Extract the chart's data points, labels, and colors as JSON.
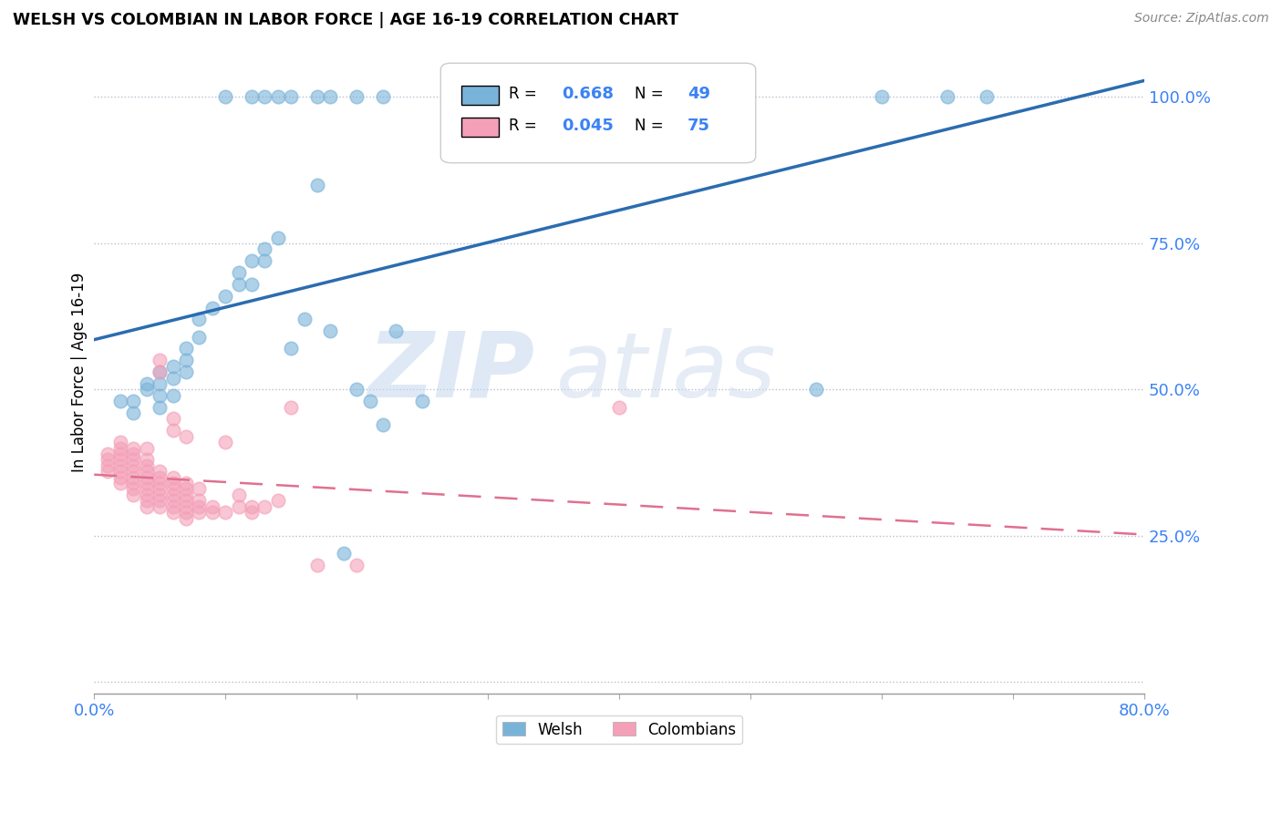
{
  "title": "WELSH VS COLOMBIAN IN LABOR FORCE | AGE 16-19 CORRELATION CHART",
  "source": "Source: ZipAtlas.com",
  "ylabel": "In Labor Force | Age 16-19",
  "xlim": [
    0.0,
    0.8
  ],
  "ylim": [
    -0.02,
    1.08
  ],
  "welsh_color": "#7ab3d9",
  "colombian_color": "#f4a0b8",
  "welsh_line_color": "#2b6cb0",
  "colombian_line_color": "#e07090",
  "tick_color": "#3b82f6",
  "welsh_R": 0.668,
  "welsh_N": 49,
  "colombian_R": 0.045,
  "colombian_N": 75,
  "watermark_zip": "ZIP",
  "watermark_atlas": "atlas",
  "legend_welsh": "Welsh",
  "legend_colombian": "Colombians",
  "welsh_x": [
    0.02,
    0.03,
    0.03,
    0.04,
    0.04,
    0.05,
    0.05,
    0.05,
    0.05,
    0.06,
    0.06,
    0.06,
    0.07,
    0.07,
    0.07,
    0.08,
    0.08,
    0.09,
    0.1,
    0.11,
    0.11,
    0.12,
    0.12,
    0.13,
    0.13,
    0.14,
    0.15,
    0.16,
    0.17,
    0.18,
    0.19,
    0.2,
    0.21,
    0.22,
    0.23,
    0.25,
    0.1,
    0.12,
    0.13,
    0.14,
    0.15,
    0.17,
    0.18,
    0.2,
    0.22,
    0.55,
    0.6,
    0.65,
    0.68
  ],
  "welsh_y": [
    0.48,
    0.46,
    0.48,
    0.5,
    0.51,
    0.47,
    0.49,
    0.51,
    0.53,
    0.49,
    0.52,
    0.54,
    0.53,
    0.55,
    0.57,
    0.59,
    0.62,
    0.64,
    0.66,
    0.68,
    0.7,
    0.72,
    0.68,
    0.72,
    0.74,
    0.76,
    0.57,
    0.62,
    0.85,
    0.6,
    0.22,
    0.5,
    0.48,
    0.44,
    0.6,
    0.48,
    1.0,
    1.0,
    1.0,
    1.0,
    1.0,
    1.0,
    1.0,
    1.0,
    1.0,
    0.5,
    1.0,
    1.0,
    1.0
  ],
  "colombian_x": [
    0.01,
    0.01,
    0.01,
    0.01,
    0.02,
    0.02,
    0.02,
    0.02,
    0.02,
    0.02,
    0.02,
    0.02,
    0.03,
    0.03,
    0.03,
    0.03,
    0.03,
    0.03,
    0.03,
    0.03,
    0.03,
    0.04,
    0.04,
    0.04,
    0.04,
    0.04,
    0.04,
    0.04,
    0.04,
    0.04,
    0.04,
    0.05,
    0.05,
    0.05,
    0.05,
    0.05,
    0.05,
    0.05,
    0.05,
    0.05,
    0.06,
    0.06,
    0.06,
    0.06,
    0.06,
    0.06,
    0.06,
    0.06,
    0.06,
    0.07,
    0.07,
    0.07,
    0.07,
    0.07,
    0.07,
    0.07,
    0.07,
    0.08,
    0.08,
    0.08,
    0.08,
    0.09,
    0.09,
    0.1,
    0.1,
    0.11,
    0.11,
    0.12,
    0.12,
    0.13,
    0.14,
    0.15,
    0.17,
    0.2,
    0.4
  ],
  "colombian_y": [
    0.36,
    0.37,
    0.38,
    0.39,
    0.34,
    0.35,
    0.36,
    0.37,
    0.38,
    0.39,
    0.4,
    0.41,
    0.32,
    0.33,
    0.34,
    0.35,
    0.36,
    0.37,
    0.38,
    0.39,
    0.4,
    0.3,
    0.31,
    0.32,
    0.33,
    0.34,
    0.35,
    0.36,
    0.37,
    0.38,
    0.4,
    0.3,
    0.31,
    0.32,
    0.33,
    0.34,
    0.35,
    0.36,
    0.53,
    0.55,
    0.29,
    0.3,
    0.31,
    0.32,
    0.33,
    0.34,
    0.35,
    0.43,
    0.45,
    0.28,
    0.29,
    0.3,
    0.31,
    0.32,
    0.33,
    0.34,
    0.42,
    0.29,
    0.3,
    0.31,
    0.33,
    0.29,
    0.3,
    0.29,
    0.41,
    0.3,
    0.32,
    0.29,
    0.3,
    0.3,
    0.31,
    0.47,
    0.2,
    0.2,
    0.47
  ]
}
